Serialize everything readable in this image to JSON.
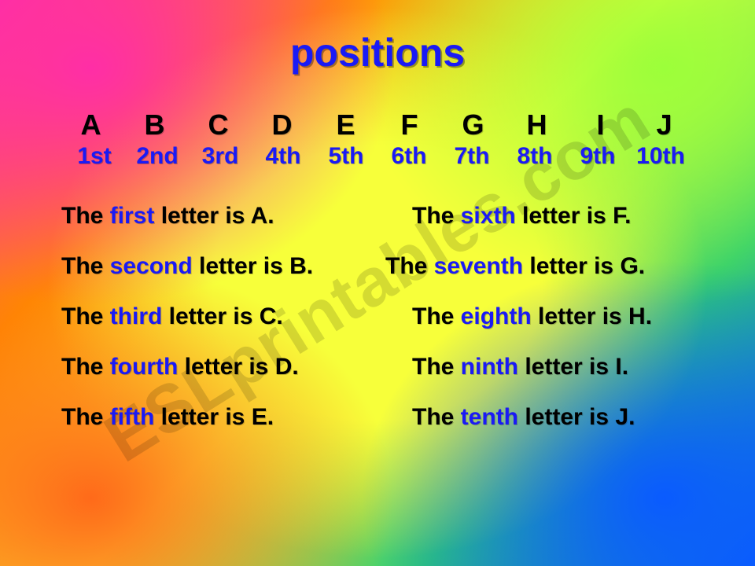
{
  "title": "positions",
  "watermark": "ESLprintables.com",
  "colors": {
    "title": "#1a1af5",
    "ordinal": "#1a1af5",
    "keyword": "#1a1af5",
    "text": "#000000",
    "bg_corners": [
      "#ff2ea6",
      "#9cff3a",
      "#ff6a1a",
      "#0a5bff"
    ],
    "bg_center": "#f7ff3a"
  },
  "typography": {
    "title_fontsize": 50,
    "letters_fontsize": 36,
    "ordinals_fontsize": 30,
    "sentence_fontsize": 30,
    "font_family": "Arial",
    "weight": "bold"
  },
  "letters": [
    "A",
    "B",
    "C",
    "D",
    "E",
    "F",
    "G",
    "H",
    "I",
    "J"
  ],
  "ordinals": [
    "1st",
    "2nd",
    "3rd",
    "4th",
    "5th",
    "6th",
    "7th",
    "8th",
    "9th",
    "10th"
  ],
  "sentences": {
    "left": [
      {
        "pre": "The ",
        "kw": "first",
        "post": " letter is A."
      },
      {
        "pre": "The ",
        "kw": "second",
        "post": " letter is B."
      },
      {
        "pre": "The ",
        "kw": "third",
        "post": " letter is C."
      },
      {
        "pre": "The ",
        "kw": "fourth",
        "post": " letter is D."
      },
      {
        "pre": "The ",
        "kw": "fifth",
        "post": " letter is E."
      }
    ],
    "right": [
      {
        "pre": "The ",
        "kw": "sixth",
        "post": " letter is F."
      },
      {
        "pre": "The ",
        "kw": "seventh",
        "post": " letter is G."
      },
      {
        "pre": "The ",
        "kw": "eighth",
        "post": " letter is H."
      },
      {
        "pre": "The ",
        "kw": "ninth",
        "post": " letter is I."
      },
      {
        "pre": "The ",
        "kw": "tenth",
        "post": " letter is J."
      }
    ]
  }
}
